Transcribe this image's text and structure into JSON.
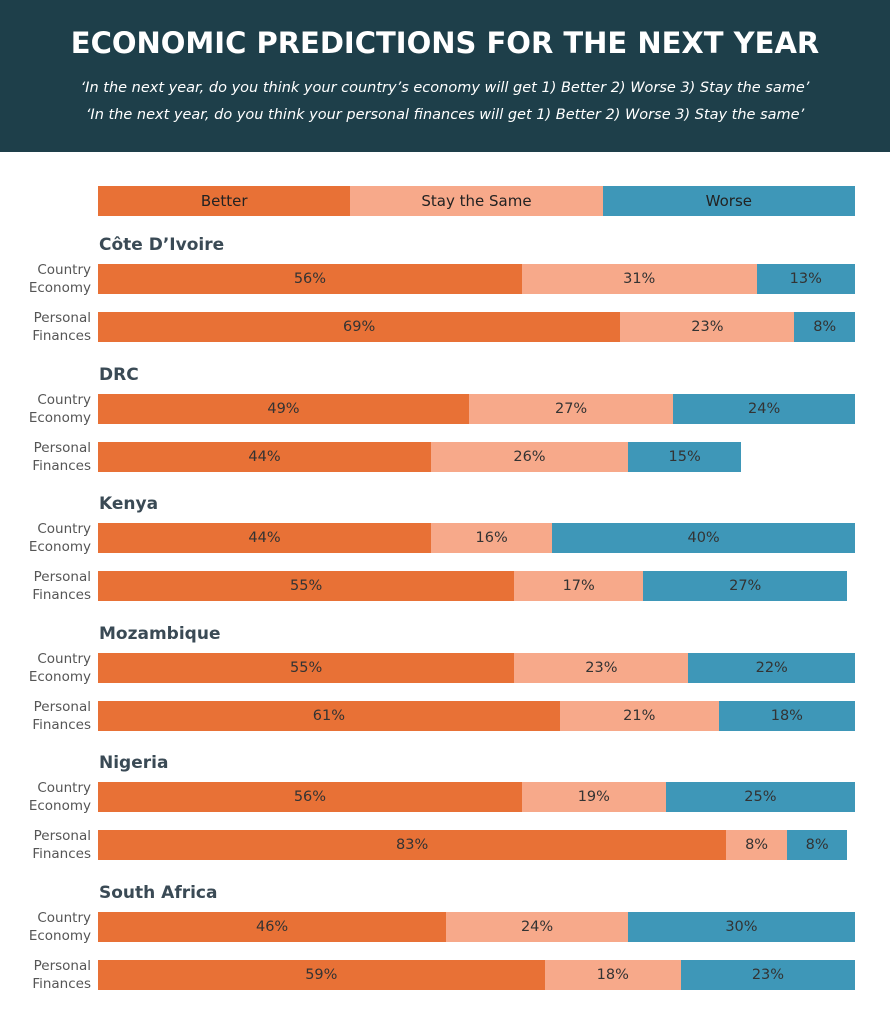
{
  "chart_data": {
    "type": "stacked_bar",
    "title": "ECONOMIC PREDICTIONS FOR THE NEXT YEAR",
    "subtitle": [
      "‘In the next year, do you think your country’s economy will get 1) Better 2) Worse 3) Stay the same’",
      "‘In the next year, do you think your personal finances will get 1) Better 2) Worse 3) Stay the same’"
    ],
    "groups": [
      "Côte D’Ivoire",
      "DRC",
      "Kenya",
      "Mozambique",
      "Nigeria",
      "South Africa"
    ],
    "categories": [
      "Country Economy",
      "Personal Finances",
      "Country Economy",
      "Personal Finances",
      "Country Economy",
      "Personal Finances",
      "Country Economy",
      "Personal Finances",
      "Country Economy",
      "Personal Finances",
      "Country Economy",
      "Personal Finances"
    ],
    "xlim": [
      0,
      100
    ],
    "series": [
      {
        "name": "Better",
        "color": "#e87136",
        "values": [
          56,
          69,
          49,
          44,
          44,
          55,
          55,
          61,
          56,
          83,
          46,
          59
        ],
        "value_labels": [
          "56%",
          "69%",
          "49%",
          "44%",
          "44%",
          "55%",
          "55%",
          "61%",
          "56%",
          "83%",
          "46%",
          "59%"
        ]
      },
      {
        "name": "Stay the Same",
        "color": "#f7a98a",
        "values": [
          31,
          23,
          27,
          26,
          16,
          17,
          23,
          21,
          19,
          8,
          24,
          18
        ],
        "value_labels": [
          "31%",
          "23%",
          "27%",
          "26%",
          "16%",
          "17%",
          "23%",
          "21%",
          "19%",
          "8%",
          "24%",
          "18%"
        ]
      },
      {
        "name": "Worse",
        "color": "#3e97b8",
        "values": [
          13,
          8,
          24,
          15,
          40,
          27,
          22,
          18,
          25,
          8,
          30,
          23
        ],
        "value_labels": [
          "13%",
          "8%",
          "24%",
          "15%",
          "40%",
          "27%",
          "22%",
          "18%",
          "25%",
          "8%",
          "30%",
          "23%"
        ]
      }
    ]
  }
}
